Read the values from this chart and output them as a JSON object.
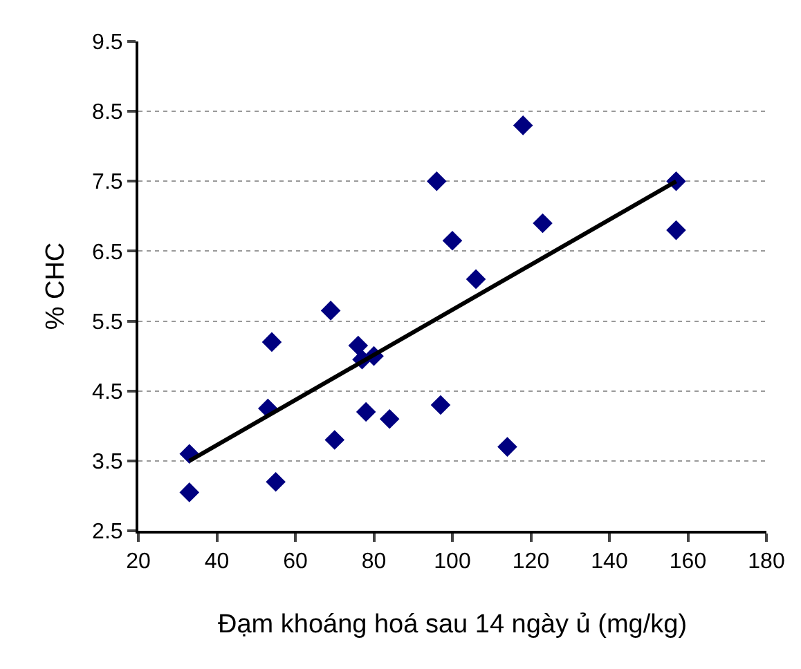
{
  "chart_data": {
    "type": "scatter",
    "xlabel": "Đạm khoáng hoá sau 14 ngày ủ (mg/kg)",
    "ylabel": "% CHC",
    "x": [
      33,
      33,
      53,
      54,
      55,
      69,
      70,
      76,
      77,
      78,
      80,
      84,
      96,
      97,
      100,
      106,
      114,
      118,
      123,
      157,
      157
    ],
    "series": [
      {
        "color": "#000080",
        "marker": "diamond",
        "values": [
          3.6,
          3.05,
          4.25,
          5.2,
          3.2,
          5.65,
          3.8,
          5.15,
          4.95,
          4.2,
          5.0,
          4.1,
          7.5,
          4.3,
          6.65,
          6.1,
          3.7,
          8.3,
          6.9,
          7.5,
          6.8
        ]
      },
      {
        "type": "line",
        "color": "#000000",
        "line_style": "solid",
        "marker": "none",
        "x": [
          33,
          157
        ],
        "values": [
          3.5,
          7.5
        ]
      }
    ],
    "xlim": [
      20,
      180
    ],
    "xticks": [
      20,
      40,
      60,
      80,
      100,
      120,
      140,
      160,
      180
    ],
    "ylim": [
      2.5,
      9.5
    ],
    "yticks": [
      2.5,
      3.5,
      4.5,
      5.5,
      6.5,
      7.5,
      8.5,
      9.5
    ],
    "grid": "y"
  }
}
